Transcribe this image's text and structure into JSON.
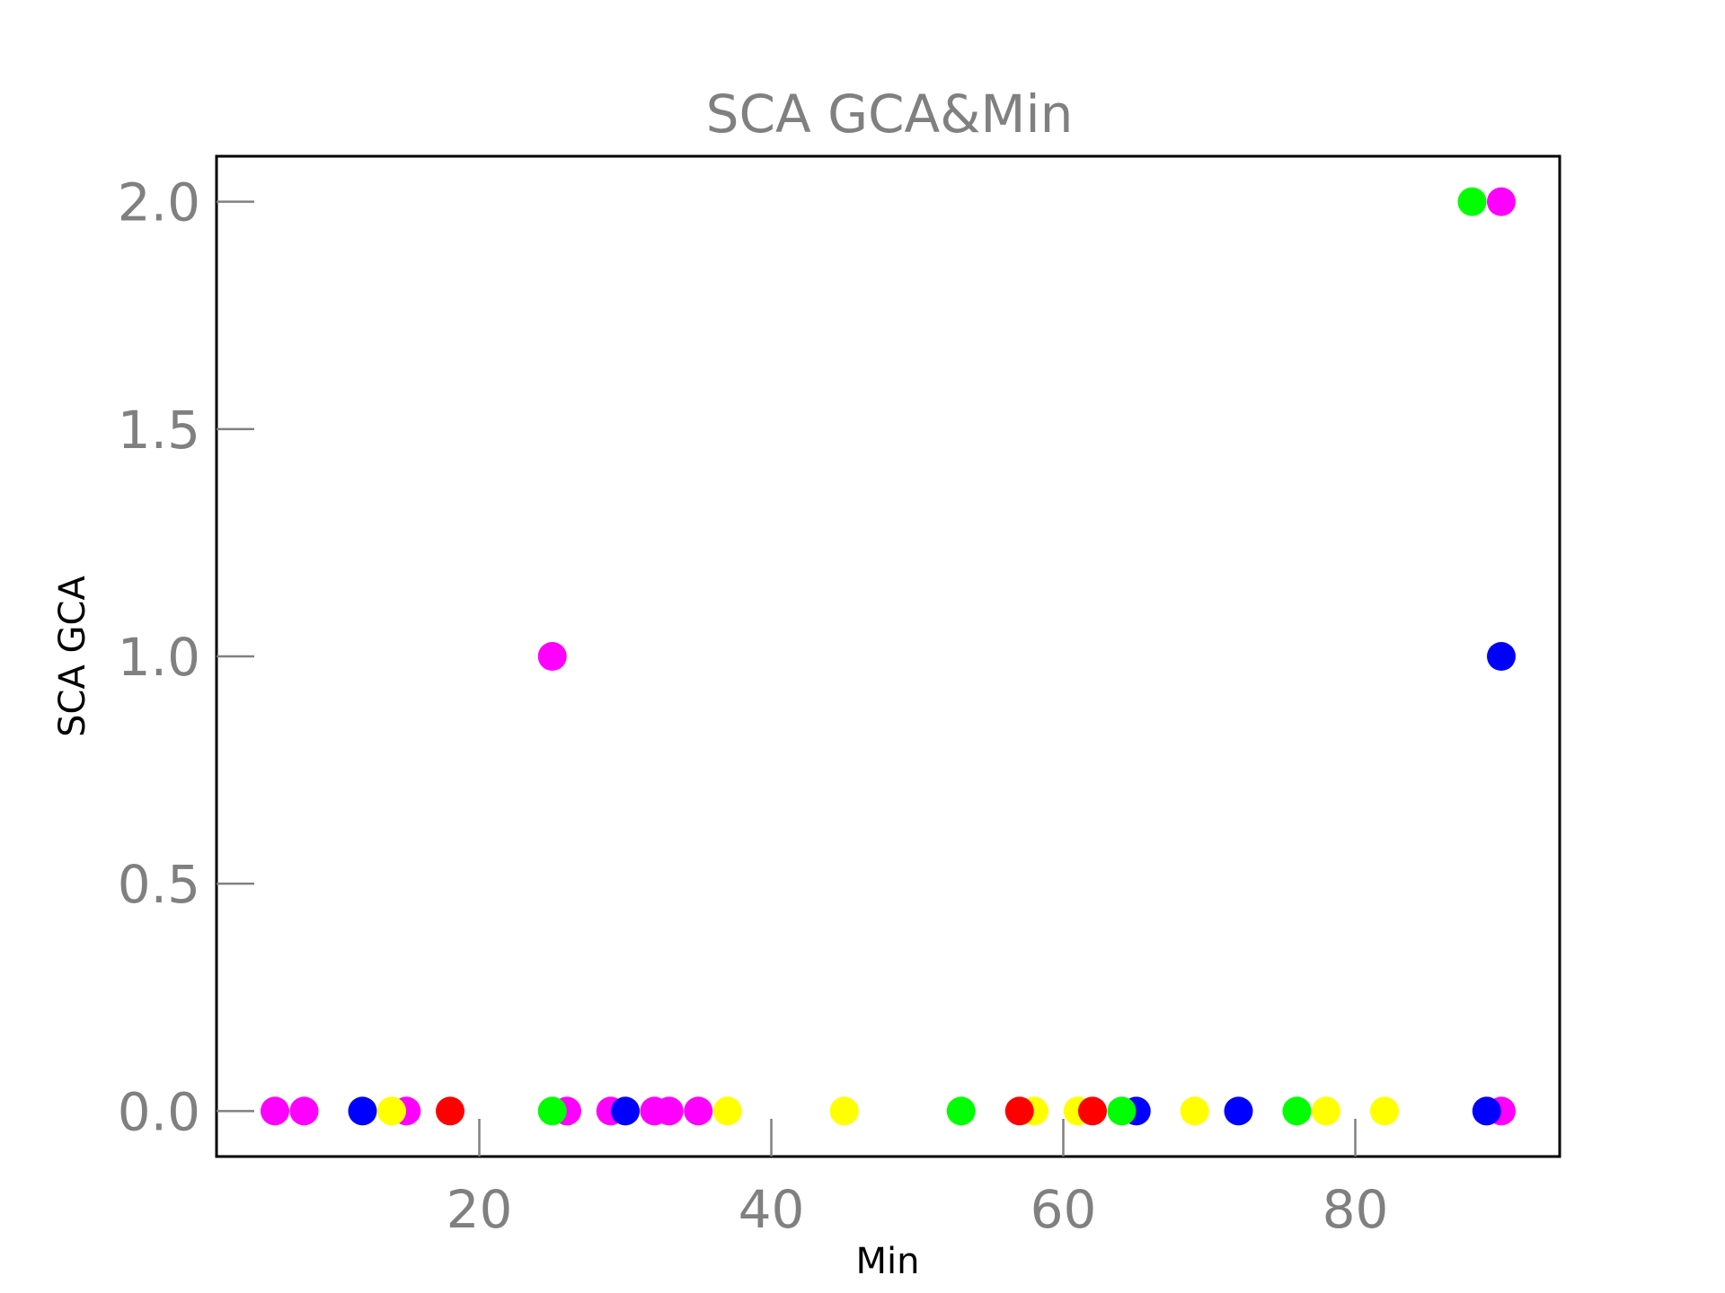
{
  "chart_data": {
    "type": "scatter",
    "title": "SCA GCA&Min",
    "xlabel": "Min",
    "ylabel": "SCA GCA",
    "xlim": [
      2,
      94
    ],
    "ylim": [
      -0.1,
      2.1
    ],
    "x_ticks": [
      20,
      40,
      60,
      80
    ],
    "y_ticks": [
      0.0,
      0.5,
      1.0,
      1.5,
      2.0
    ],
    "x_tick_labels": [
      "20",
      "40",
      "60",
      "80"
    ],
    "y_tick_labels": [
      "0.0",
      "0.5",
      "1.0",
      "1.5",
      "2.0"
    ],
    "grid": false,
    "legend": false,
    "colors": {
      "magenta": "#ff00ff",
      "blue": "#0000ff",
      "yellow": "#ffff00",
      "red": "#ff0000",
      "green": "#00ff00"
    },
    "series": [
      {
        "color": "magenta",
        "x": [
          6,
          8,
          15,
          26,
          29,
          32,
          33,
          35,
          25,
          90,
          90
        ],
        "y": [
          0,
          0,
          0,
          0,
          0,
          0,
          0,
          0,
          1,
          2,
          0
        ]
      },
      {
        "color": "blue",
        "x": [
          12,
          30,
          65,
          72,
          89,
          90
        ],
        "y": [
          0,
          0,
          0,
          0,
          0,
          1
        ]
      },
      {
        "color": "yellow",
        "x": [
          14,
          37,
          45,
          58,
          61,
          69,
          78,
          82
        ],
        "y": [
          0,
          0,
          0,
          0,
          0,
          0,
          0,
          0
        ]
      },
      {
        "color": "red",
        "x": [
          18,
          57,
          62
        ],
        "y": [
          0,
          0,
          0
        ]
      },
      {
        "color": "green",
        "x": [
          25,
          53,
          64,
          76,
          88
        ],
        "y": [
          0,
          0,
          0,
          0,
          2
        ]
      }
    ]
  }
}
